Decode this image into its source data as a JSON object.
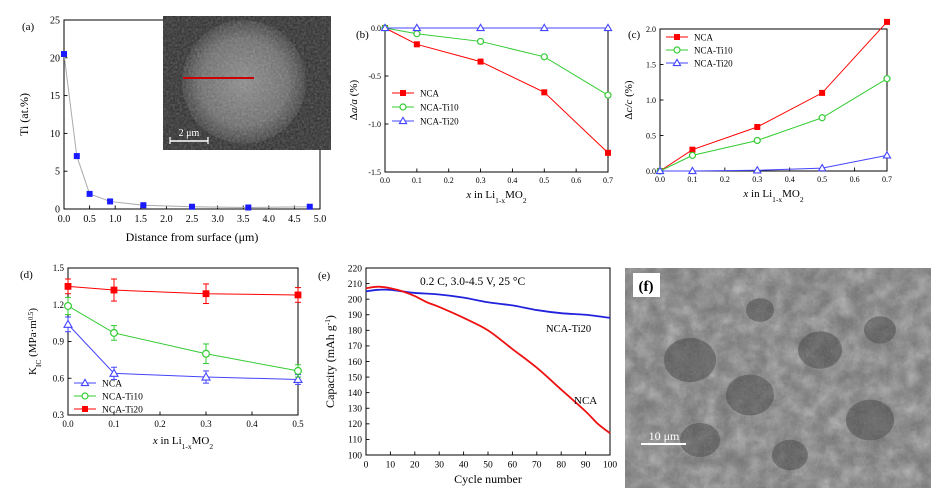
{
  "chart_data": [
    {
      "id": "a",
      "panel_label": "(a)",
      "type": "scatter",
      "xlabel": "Distance from surface (μm)",
      "ylabel": "Ti (at.%)",
      "xlim": [
        0,
        5
      ],
      "ylim": [
        0,
        25
      ],
      "xticks": [
        "0.0",
        "0.5",
        "1.0",
        "1.5",
        "2.0",
        "2.5",
        "3.0",
        "3.5",
        "4.0",
        "4.5",
        "5.0"
      ],
      "yticks": [
        "0",
        "5",
        "10",
        "15",
        "20",
        "25"
      ],
      "x": [
        0.0,
        0.25,
        0.5,
        0.9,
        1.55,
        2.5,
        3.6,
        4.8
      ],
      "y": [
        20.5,
        7.0,
        2.0,
        1.0,
        0.5,
        0.3,
        0.2,
        0.3
      ],
      "marker_color": "#1a1aff",
      "line_color": "#aaaaaa",
      "inset": {
        "scale_label": "2 μm",
        "line_color": "#cc0000"
      }
    },
    {
      "id": "b",
      "panel_label": "(b)",
      "type": "line",
      "xlabel": "x in Li1-xMO2",
      "ylabel": "Δa/a (%)",
      "xlim": [
        0,
        0.7
      ],
      "ylim": [
        -1.5,
        0.0
      ],
      "xticks": [
        "0.0",
        "0.1",
        "0.2",
        "0.3",
        "0.4",
        "0.5",
        "0.6",
        "0.7"
      ],
      "yticks": [
        "0.0",
        "-0.5",
        "-1.0",
        "-1.5"
      ],
      "legend_position": "bottom-left",
      "series": [
        {
          "name": "NCA",
          "color": "#ff0000",
          "marker": "square",
          "x": [
            0,
            0.1,
            0.3,
            0.5,
            0.7
          ],
          "y": [
            0,
            -0.17,
            -0.35,
            -0.67,
            -1.3
          ]
        },
        {
          "name": "NCA-Ti10",
          "color": "#33cc33",
          "marker": "circle",
          "x": [
            0,
            0.1,
            0.3,
            0.5,
            0.7
          ],
          "y": [
            0,
            -0.06,
            -0.14,
            -0.3,
            -0.7
          ]
        },
        {
          "name": "NCA-Ti20",
          "color": "#4444ff",
          "marker": "triangle",
          "x": [
            0,
            0.1,
            0.3,
            0.5,
            0.7
          ],
          "y": [
            0,
            0,
            0,
            0,
            0
          ]
        }
      ]
    },
    {
      "id": "c",
      "panel_label": "(c)",
      "type": "line",
      "xlabel": "x in Li1-xMO2",
      "ylabel": "Δc/c (%)",
      "xlim": [
        0,
        0.7
      ],
      "ylim": [
        0,
        2.0
      ],
      "xticks": [
        "0.0",
        "0.1",
        "0.2",
        "0.3",
        "0.4",
        "0.5",
        "0.6",
        "0.7"
      ],
      "yticks": [
        "0.0",
        "0.5",
        "1.0",
        "1.5",
        "2.0"
      ],
      "legend_position": "top-left",
      "series": [
        {
          "name": "NCA",
          "color": "#ff0000",
          "marker": "square",
          "x": [
            0,
            0.1,
            0.3,
            0.5,
            0.7
          ],
          "y": [
            0,
            0.3,
            0.62,
            1.1,
            2.1
          ]
        },
        {
          "name": "NCA-Ti10",
          "color": "#33cc33",
          "marker": "circle",
          "x": [
            0,
            0.1,
            0.3,
            0.5,
            0.7
          ],
          "y": [
            0,
            0.22,
            0.43,
            0.75,
            1.3
          ]
        },
        {
          "name": "NCA-Ti20",
          "color": "#4444ff",
          "marker": "triangle",
          "x": [
            0,
            0.1,
            0.3,
            0.5,
            0.7
          ],
          "y": [
            0,
            0,
            0.01,
            0.04,
            0.22
          ]
        }
      ]
    },
    {
      "id": "d",
      "panel_label": "(d)",
      "type": "line",
      "xlabel": "x in Li1-xMO2",
      "ylabel": "KIC (MPa·m0.5)",
      "xlim": [
        0,
        0.5
      ],
      "ylim": [
        0.3,
        1.5
      ],
      "xticks": [
        "0.0",
        "0.1",
        "0.2",
        "0.3",
        "0.4",
        "0.5"
      ],
      "yticks": [
        "0.3",
        "0.6",
        "0.9",
        "1.2",
        "1.5"
      ],
      "legend_position": "bottom-left",
      "series": [
        {
          "name": "NCA",
          "color": "#4444ff",
          "marker": "triangle",
          "x": [
            0,
            0.1,
            0.3,
            0.5
          ],
          "y": [
            1.04,
            0.64,
            0.61,
            0.59
          ],
          "err": [
            0.06,
            0.05,
            0.05,
            0.04
          ]
        },
        {
          "name": "NCA-Ti10",
          "color": "#33cc33",
          "marker": "circle",
          "x": [
            0,
            0.1,
            0.3,
            0.5
          ],
          "y": [
            1.19,
            0.97,
            0.8,
            0.66
          ],
          "err": [
            0.07,
            0.06,
            0.08,
            0.05
          ]
        },
        {
          "name": "NCA-Ti20",
          "color": "#ff0000",
          "marker": "square",
          "x": [
            0,
            0.1,
            0.3,
            0.5
          ],
          "y": [
            1.35,
            1.32,
            1.29,
            1.28
          ],
          "err": [
            0.06,
            0.09,
            0.08,
            0.06
          ]
        }
      ]
    },
    {
      "id": "e",
      "panel_label": "(e)",
      "type": "line",
      "annotation": "0.2 C, 3.0-4.5 V, 25 °C",
      "xlabel": "Cycle number",
      "ylabel": "Capacity (mAh g-1)",
      "xlim": [
        0,
        100
      ],
      "ylim": [
        100,
        220
      ],
      "xticks": [
        "0",
        "10",
        "20",
        "30",
        "40",
        "50",
        "60",
        "70",
        "80",
        "90",
        "100"
      ],
      "yticks": [
        "100",
        "110",
        "120",
        "130",
        "140",
        "150",
        "160",
        "170",
        "180",
        "190",
        "200",
        "210",
        "220"
      ],
      "series": [
        {
          "name": "NCA-Ti20",
          "color": "#2222dd",
          "x": [
            0,
            5,
            10,
            15,
            20,
            30,
            40,
            50,
            60,
            70,
            80,
            90,
            100
          ],
          "y": [
            205,
            206,
            206,
            205,
            204,
            203,
            201,
            198,
            196,
            193,
            191,
            190,
            188
          ]
        },
        {
          "name": "NCA",
          "color": "#ee1111",
          "x": [
            0,
            5,
            10,
            15,
            20,
            25,
            30,
            40,
            50,
            60,
            70,
            80,
            90,
            95,
            100
          ],
          "y": [
            207,
            208,
            207,
            205,
            202,
            198,
            195,
            188,
            180,
            168,
            156,
            142,
            128,
            120,
            114
          ]
        }
      ]
    },
    {
      "id": "f",
      "panel_label": "(f)",
      "type": "image",
      "scale_label": "10 μm"
    }
  ]
}
